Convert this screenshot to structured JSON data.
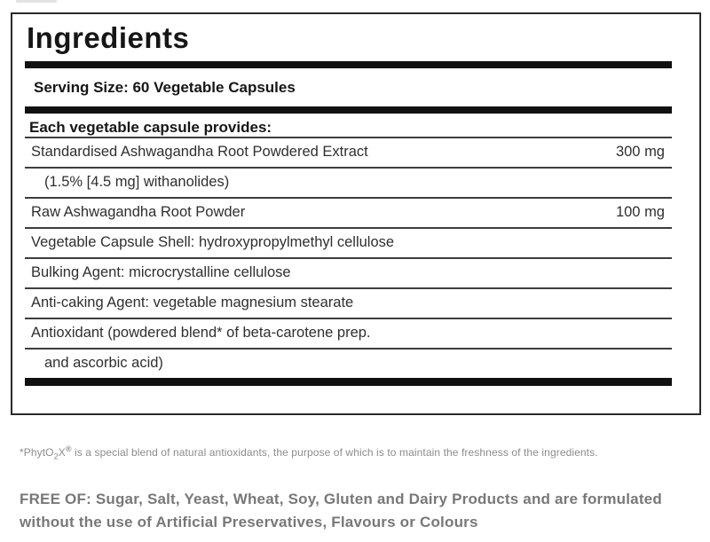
{
  "label": {
    "title": "Ingredients",
    "serving_size": "Serving Size: 60 Vegetable Capsules",
    "provides_header": "Each vegetable capsule provides:",
    "rows": [
      {
        "name": "Standardised Ashwagandha Root Powdered Extract",
        "amount": "300 mg"
      },
      {
        "name": "(1.5% [4.5 mg] withanolides)",
        "amount": ""
      },
      {
        "name": "Raw Ashwagandha Root Powder",
        "amount": "100 mg"
      },
      {
        "name": "Vegetable Capsule Shell: hydroxypropylmethyl cellulose",
        "amount": ""
      },
      {
        "name": "Bulking Agent: microcrystalline cellulose",
        "amount": ""
      },
      {
        "name": "Anti-caking Agent: vegetable magnesium stearate",
        "amount": ""
      },
      {
        "name": "Antioxidant (powdered blend* of beta-carotene prep.",
        "amount": ""
      },
      {
        "name": "and ascorbic acid)",
        "amount": ""
      }
    ]
  },
  "footnote": {
    "lead": "*PhytO",
    "subscript": "2",
    "mid": "X",
    "superscript": "®",
    "rest": " is a special blend of natural antioxidants, the purpose of which is to maintain the freshness of the ingredients."
  },
  "free_of": {
    "line1": "FREE OF: Sugar, Salt, Yeast, Wheat, Soy, Gluten and Dairy Products and are formulated",
    "line2": "without the use of Artificial Preservatives, Flavours or Colours"
  },
  "colors": {
    "bar": "#111111",
    "rule": "#3d3d3d",
    "panel_border": "#2a2a2a",
    "header_text": "#161616",
    "row_text": "#2f2f2f",
    "footnote_text": "#8c8c8c",
    "free_of_text": "#787878"
  }
}
